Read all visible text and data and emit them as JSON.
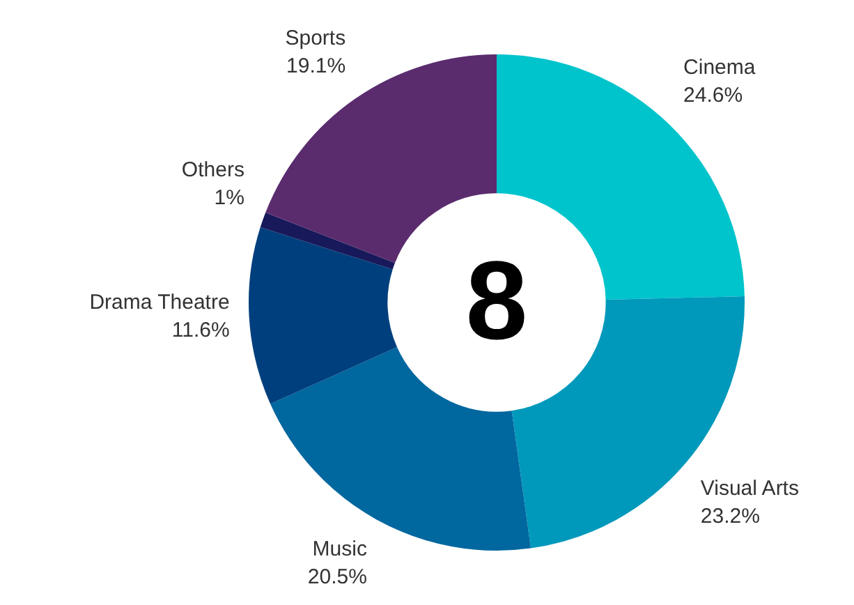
{
  "chart_data": {
    "type": "donut",
    "categories": [
      "Cinema",
      "Visual Arts",
      "Music",
      "Drama Theatre",
      "Others",
      "Sports"
    ],
    "values": [
      24.6,
      23.2,
      20.5,
      11.6,
      1,
      19.1
    ],
    "value_labels": [
      "24.6%",
      "23.2%",
      "20.5%",
      "11.6%",
      "1%",
      "19.1%"
    ],
    "colors": [
      "#00c4cc",
      "#0099bb",
      "#00679f",
      "#003f7d",
      "#17195a",
      "#5a2c6e"
    ],
    "annotations": [
      "8"
    ],
    "legend": false
  }
}
